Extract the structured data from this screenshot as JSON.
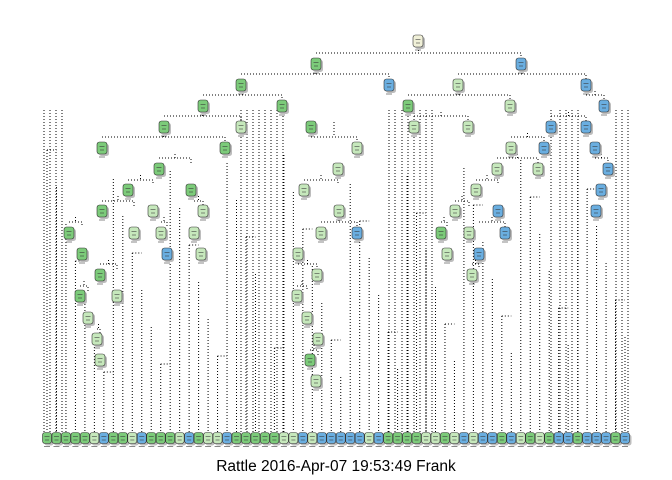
{
  "caption": "Rattle 2016-Apr-07 19:53:49 Frank",
  "colors": {
    "green": "#7ccb7a",
    "light_green": "#c6e8bc",
    "light_blue": "#bcdcee",
    "blue": "#6aaee0",
    "neutral": "#f0f0d8",
    "edge": "#000000",
    "shadow": "#bdbdbd",
    "background": "#ffffff"
  },
  "leaf_classes": "GGGGGLBGGLBGGGLBGLLBGGGGGLLBLBBBBBLBGGGGLLGLBLBBGBLGLGBBGBBBGB"
}
